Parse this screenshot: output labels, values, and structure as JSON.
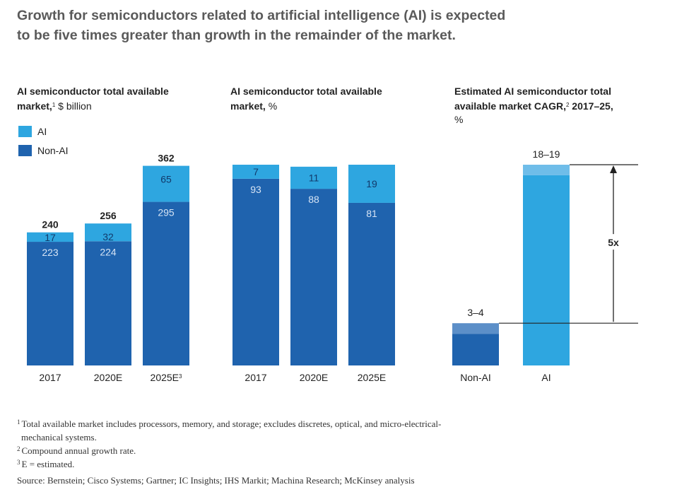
{
  "headline": {
    "line1": "Growth for semiconductors related to artificial intelligence (AI) is expected",
    "line2": "to be five times greater than growth in the remainder of the market."
  },
  "colors": {
    "ai": "#2ea6e0",
    "non_ai": "#1f63ae",
    "ai_light": "#6fbde9",
    "non_ai_light": "#5c8fc8"
  },
  "legend": {
    "ai": "AI",
    "non_ai": "Non-AI"
  },
  "chart_data": [
    {
      "type": "bar",
      "stacked": true,
      "title_line1": "AI semiconductor total available",
      "title_line2": "market,",
      "title_sup": "1",
      "title_unit": "$ billion",
      "categories": [
        "2017",
        "2020E",
        "2025E"
      ],
      "category_sups": [
        "",
        "",
        "3"
      ],
      "series": [
        {
          "name": "Non-AI",
          "values": [
            223,
            224,
            295
          ]
        },
        {
          "name": "AI",
          "values": [
            17,
            32,
            65
          ]
        }
      ],
      "totals": [
        240,
        256,
        362
      ],
      "ylim": [
        0,
        362
      ]
    },
    {
      "type": "bar",
      "stacked": true,
      "title_line1": "AI semiconductor total available",
      "title_line2": "market,",
      "title_unit": "%",
      "categories": [
        "2017",
        "2020E",
        "2025E"
      ],
      "series": [
        {
          "name": "Non-AI",
          "values": [
            93,
            88,
            81
          ]
        },
        {
          "name": "AI",
          "values": [
            7,
            11,
            19
          ]
        }
      ],
      "ylim": [
        0,
        100
      ]
    },
    {
      "type": "bar",
      "title_line1": "Estimated AI semiconductor total",
      "title_line2": "available market CAGR,",
      "title_sup": "2",
      "title_line2_tail": "2017–25,",
      "title_line3": "%",
      "categories": [
        "Non-AI",
        "AI"
      ],
      "ranges": [
        [
          3,
          4
        ],
        [
          18,
          19
        ]
      ],
      "range_labels": [
        "3–4",
        "18–19"
      ],
      "annotation": "5x",
      "ylim": [
        0,
        19
      ]
    }
  ],
  "footnotes": [
    {
      "sup": "1",
      "text": "Total available market includes processors, memory, and storage; excludes discretes, optical, and micro-electrical-",
      "cont": "mechanical systems."
    },
    {
      "sup": "2",
      "text": "Compound annual growth rate."
    },
    {
      "sup": "3",
      "text": "E = estimated."
    }
  ],
  "source": "Source: Bernstein; Cisco Systems; Gartner; IC Insights; IHS Markit; Machina Research; McKinsey analysis"
}
